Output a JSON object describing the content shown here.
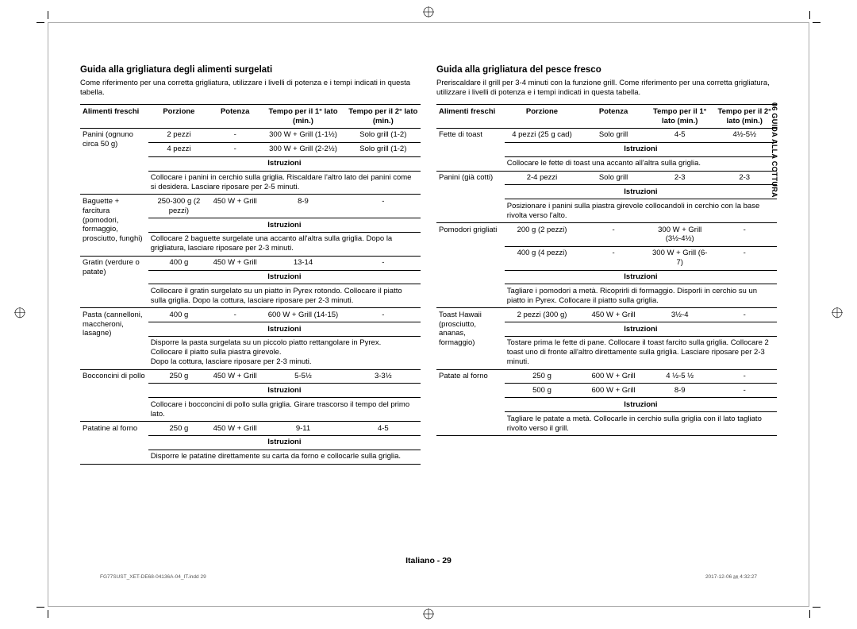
{
  "side_tab": "06 GUIDA ALLA COTTURA",
  "page_footer": "Italiano - 29",
  "print_footer_left": "FG77SUST_XET-DE68-04136A-04_IT.indd   29",
  "print_footer_right": "2017-12-06   ㏂ 4:32:27",
  "left": {
    "title": "Guida alla grigliatura degli alimenti surgelati",
    "intro": "Come riferimento per una corretta grigliatura, utilizzare i livelli di potenza e i tempi indicati in questa tabella.",
    "headers": [
      "Alimenti freschi",
      "Porzione",
      "Potenza",
      "Tempo per il 1° lato (min.)",
      "Tempo per il 2° lato (min.)"
    ],
    "rows": [
      {
        "food": "Panini (ognuno circa 50 g)",
        "data": [
          [
            "2 pezzi",
            "-",
            "300 W + Grill (1-1½)",
            "Solo grill (1-2)"
          ],
          [
            "4 pezzi",
            "-",
            "300 W + Grill (2-2½)",
            "Solo grill (1-2)"
          ]
        ],
        "instr": "Collocare i panini in cerchio sulla griglia. Riscaldare l'altro lato dei panini come si desidera. Lasciare riposare per 2-5 minuti."
      },
      {
        "food": "Baguette + farcitura (pomodori, formaggio, prosciutto, funghi)",
        "data": [
          [
            "250-300 g (2 pezzi)",
            "450 W + Grill",
            "8-9",
            "-"
          ]
        ],
        "instr": "Collocare 2 baguette surgelate una accanto all'altra sulla griglia. Dopo la grigliatura, lasciare riposare per 2-3 minuti."
      },
      {
        "food": "Gratin (verdure o patate)",
        "data": [
          [
            "400 g",
            "450 W + Grill",
            "13-14",
            "-"
          ]
        ],
        "instr": "Collocare il gratin surgelato su un piatto in Pyrex rotondo. Collocare il piatto sulla griglia. Dopo la cottura, lasciare riposare per 2-3 minuti."
      },
      {
        "food": "Pasta (cannelloni, maccheroni, lasagne)",
        "data": [
          [
            "400 g",
            "-",
            "600 W + Grill (14-15)",
            "-"
          ]
        ],
        "instr": "Disporre la pasta surgelata su un piccolo piatto rettangolare in Pyrex.\nCollocare il piatto sulla piastra girevole.\nDopo la cottura, lasciare riposare per 2-3 minuti."
      },
      {
        "food": "Bocconcini di pollo",
        "data": [
          [
            "250 g",
            "450 W + Grill",
            "5-5½",
            "3-3½"
          ]
        ],
        "instr": "Collocare i bocconcini di pollo sulla griglia. Girare trascorso il tempo del primo lato."
      },
      {
        "food": "Patatine al forno",
        "data": [
          [
            "250 g",
            "450 W + Grill",
            "9-11",
            "4-5"
          ]
        ],
        "instr": "Disporre le patatine direttamente su carta da forno e collocarle sulla griglia."
      }
    ]
  },
  "right": {
    "title": "Guida alla grigliatura del pesce fresco",
    "intro": "Preriscaldare il grill per 3-4 minuti con la funzione grill. Come riferimento per una corretta grigliatura, utilizzare i livelli di potenza e i tempi indicati in questa tabella.",
    "headers": [
      "Alimenti freschi",
      "Porzione",
      "Potenza",
      "Tempo per il 1° lato (min.)",
      "Tempo per il 2° lato (min.)"
    ],
    "rows": [
      {
        "food": "Fette di toast",
        "data": [
          [
            "4 pezzi (25 g cad)",
            "Solo grill",
            "4-5",
            "4½-5½"
          ]
        ],
        "instr": "Collocare le fette di toast una accanto all'altra sulla griglia."
      },
      {
        "food": "Panini (già cotti)",
        "data": [
          [
            "2-4 pezzi",
            "Solo grill",
            "2-3",
            "2-3"
          ]
        ],
        "instr": "Posizionare i panini sulla piastra girevole collocandoli in cerchio con la base rivolta verso l'alto."
      },
      {
        "food": "Pomodori grigliati",
        "data": [
          [
            "200 g (2 pezzi)",
            "-",
            "300 W + Grill (3½-4½)",
            "-"
          ],
          [
            "400 g (4 pezzi)",
            "-",
            "300 W + Grill (6-7)",
            "-"
          ]
        ],
        "instr": "Tagliare i pomodori a metà. Ricoprirli di formaggio. Disporli in cerchio su un piatto in Pyrex. Collocare il piatto sulla griglia."
      },
      {
        "food": "Toast Hawaii (prosciutto, ananas, formaggio)",
        "data": [
          [
            "2 pezzi (300 g)",
            "450 W + Grill",
            "3½-4",
            "-"
          ]
        ],
        "instr": "Tostare prima le fette di pane. Collocare il toast farcito sulla griglia. Collocare 2 toast uno di fronte all'altro direttamente sulla griglia. Lasciare riposare per 2-3 minuti."
      },
      {
        "food": "Patate al forno",
        "data": [
          [
            "250 g",
            "600 W + Grill",
            "4 ½-5 ½",
            "-"
          ],
          [
            "500 g",
            "600 W + Grill",
            "8-9",
            "-"
          ]
        ],
        "instr": "Tagliare le patate a metà. Collocarle in cerchio sulla griglia con il lato tagliato rivolto verso il grill."
      }
    ]
  },
  "instr_label": "Istruzioni"
}
